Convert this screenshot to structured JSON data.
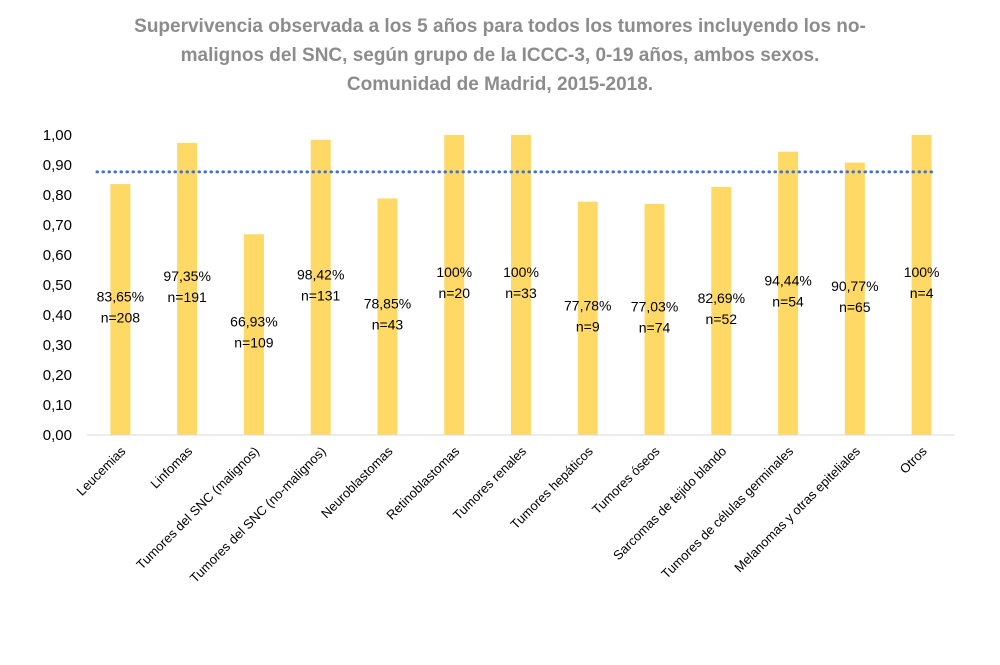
{
  "chart_data": {
    "type": "bar",
    "title": [
      "Supervivencia observada a los 5 años para todos los tumores incluyendo los no-",
      "malignos del SNC, según grupo de la ICCC-3, 0-19 años, ambos sexos.",
      "Comunidad de Madrid, 2015-2018."
    ],
    "categories": [
      "Leucemias",
      "Linfomas",
      "Tumores del SNC (malignos)",
      "Tumores del SNC (no-malignos)",
      "Neuroblastomas",
      "Retinoblastomas",
      "Tumores renales",
      "Tumores hepáticos",
      "Tumores óseos",
      "Sarcomas de tejido blando",
      "Tumores de células germinales",
      "Melanomas y otras epiteliales",
      "Otros"
    ],
    "values": [
      0.8365,
      0.9735,
      0.6693,
      0.9842,
      0.7885,
      1.0,
      1.0,
      0.7778,
      0.7703,
      0.8269,
      0.9444,
      0.9077,
      1.0
    ],
    "value_labels": [
      "83,65%",
      "97,35%",
      "66,93%",
      "98,42%",
      "78,85%",
      "100%",
      "100%",
      "77,78%",
      "77,03%",
      "82,69%",
      "94,44%",
      "90,77%",
      "100%"
    ],
    "n_labels": [
      "n=208",
      "n=191",
      "n=109",
      "n=131",
      "n=43",
      "n=20",
      "n=33",
      "n=9",
      "n=74",
      "n=52",
      "n=54",
      "n=65",
      "n=4"
    ],
    "yticks": [
      "0,00",
      "0,10",
      "0,20",
      "0,30",
      "0,40",
      "0,50",
      "0,60",
      "0,70",
      "0,80",
      "0,90",
      "1,00"
    ],
    "ylim": [
      0,
      1.0
    ],
    "reference_line": 0.877,
    "grid": false,
    "colors": {
      "bar": "#FFD966",
      "reference_line": "#4472C4",
      "title": "#8C8C8C",
      "axis": "#D9D9D9"
    }
  }
}
